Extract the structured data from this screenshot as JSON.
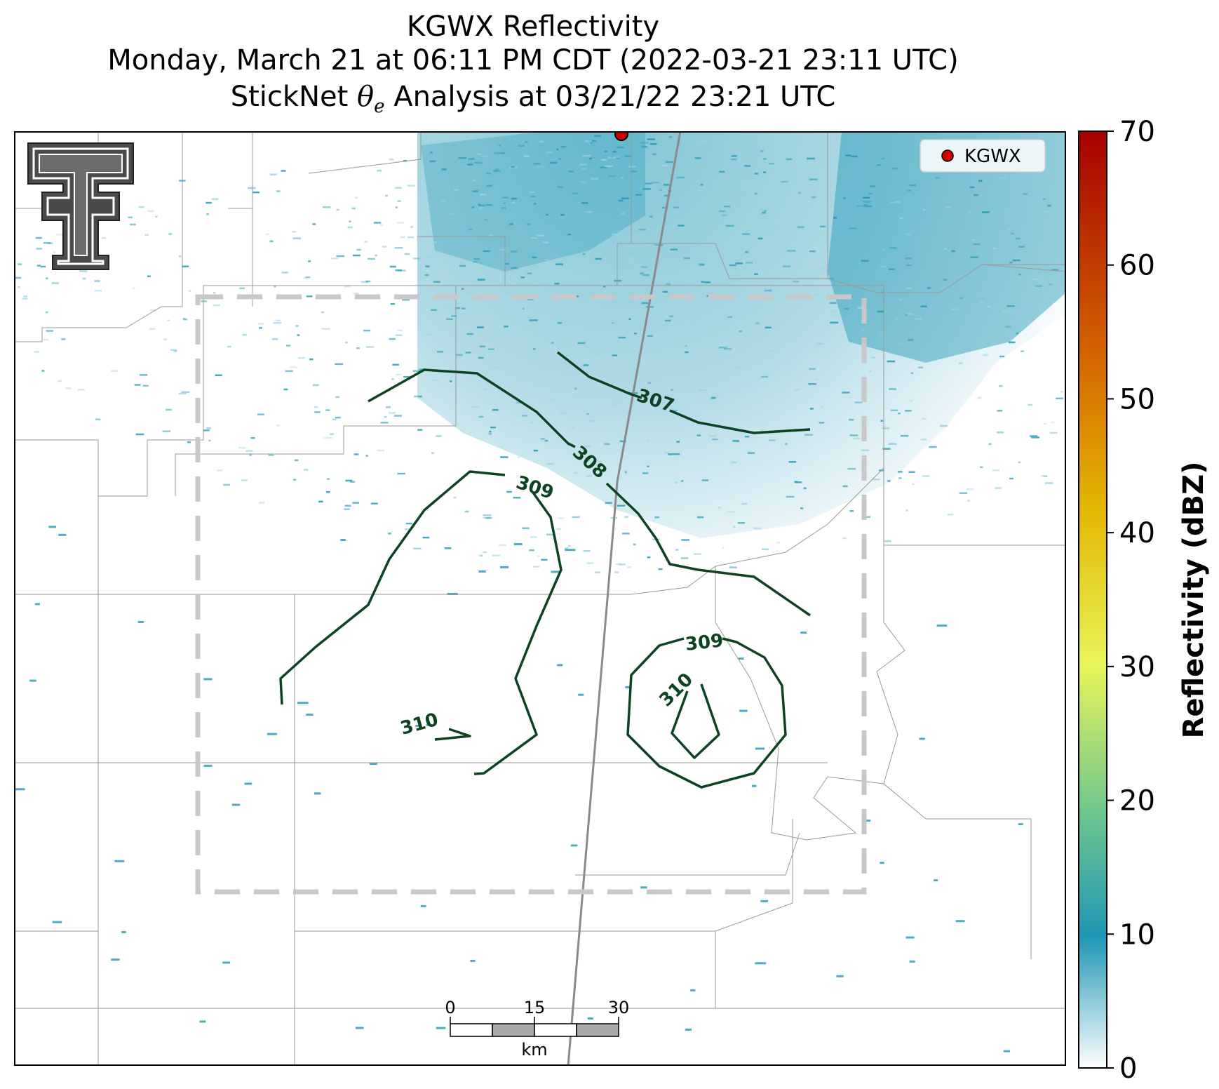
{
  "title": {
    "line1": "KGWX Reflectivity",
    "line2": "Monday, March 21 at 06:11 PM CDT (2022-03-21 23:11 UTC)",
    "line3_prefix": "StickNet ",
    "line3_symbol": "θ",
    "line3_subscript": "e",
    "line3_suffix": " Analysis at 03/21/22 23:21 UTC"
  },
  "legend": {
    "marker_label": "KGWX",
    "marker_color": "#d40000"
  },
  "colorbar": {
    "label": "Reflectivity (dBZ)",
    "ticks": [
      "0",
      "10",
      "20",
      "30",
      "40",
      "50",
      "60",
      "70"
    ],
    "range": [
      0,
      70
    ],
    "colors": [
      "#ffffff",
      "#1f97b5",
      "#6cc58f",
      "#e8f55a",
      "#e2b600",
      "#d66a00",
      "#a60000"
    ]
  },
  "contours": {
    "color": "#0c4322",
    "labels": [
      "307",
      "308",
      "309",
      "309",
      "310",
      "310"
    ]
  },
  "scale_bar": {
    "ticks": [
      "0",
      "15",
      "30"
    ],
    "unit": "km"
  },
  "colors": {
    "echo": "#1f97b5",
    "echo_light": "#9fd2e3",
    "county_lines": "#999999",
    "highway": "#8a8a8a",
    "domain_box": "#c8c8c8"
  }
}
